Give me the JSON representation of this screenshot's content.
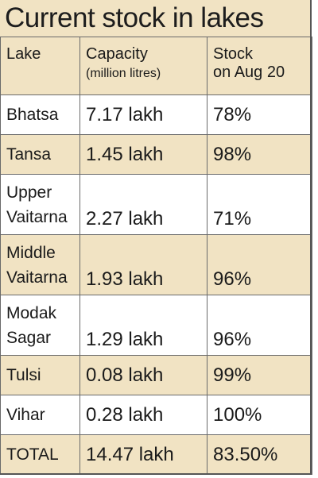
{
  "title": "Current stock in lakes",
  "header": {
    "lake": "Lake",
    "capacity": "Capacity",
    "capacity_unit": "(million litres)",
    "stock_line1": "Stock",
    "stock_line2": "on Aug 20"
  },
  "chart_data": {
    "type": "table",
    "title": "Current stock in lakes",
    "columns": [
      "Lake",
      "Capacity (million litres)",
      "Stock on Aug 20"
    ],
    "rows": [
      {
        "lake": [
          "Bhatsa"
        ],
        "capacity": "7.17 lakh",
        "stock": "78%"
      },
      {
        "lake": [
          "Tansa"
        ],
        "capacity": "1.45 lakh",
        "stock": "98%"
      },
      {
        "lake": [
          "Upper",
          "Vaitarna"
        ],
        "capacity": "2.27 lakh",
        "stock": "71%"
      },
      {
        "lake": [
          "Middle",
          "Vaitarna"
        ],
        "capacity": "1.93 lakh",
        "stock": "96%"
      },
      {
        "lake": [
          "Modak",
          "Sagar"
        ],
        "capacity": "1.29 lakh",
        "stock": "96%"
      },
      {
        "lake": [
          "Tulsi"
        ],
        "capacity": "0.08 lakh",
        "stock": "99%"
      },
      {
        "lake": [
          "Vihar"
        ],
        "capacity": "0.28 lakh",
        "stock": "100%"
      },
      {
        "lake": [
          "TOTAL"
        ],
        "capacity": "14.47 lakh",
        "stock": "83.50%"
      }
    ]
  }
}
